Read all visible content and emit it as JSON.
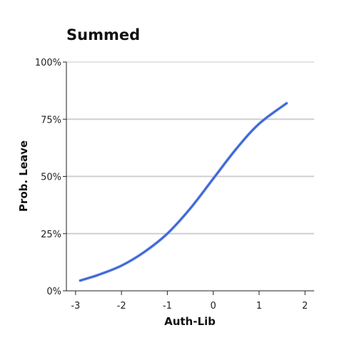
{
  "chart_data": {
    "type": "line",
    "title": "Summed",
    "xlabel": "Auth-Lib",
    "ylabel": "Prob. Leave",
    "xlim": [
      -3.2,
      2.2
    ],
    "ylim": [
      0,
      1
    ],
    "x_ticks": [
      -3,
      -2,
      -1,
      0,
      1,
      2
    ],
    "x_tick_labels": [
      "-3",
      "-2",
      "-1",
      "0",
      "1",
      "2"
    ],
    "y_ticks": [
      0,
      0.25,
      0.5,
      0.75,
      1.0
    ],
    "y_tick_labels": [
      "0%",
      "25%",
      "50%",
      "75%",
      "100%"
    ],
    "grid": "horizontal",
    "series": [
      {
        "color": "#3d67d8",
        "x": [
          -2.9,
          -2.5,
          -2.0,
          -1.5,
          -1.0,
          -0.5,
          0.0,
          0.5,
          1.0,
          1.6
        ],
        "y": [
          0.045,
          0.07,
          0.11,
          0.17,
          0.25,
          0.36,
          0.49,
          0.62,
          0.73,
          0.82
        ]
      }
    ]
  }
}
